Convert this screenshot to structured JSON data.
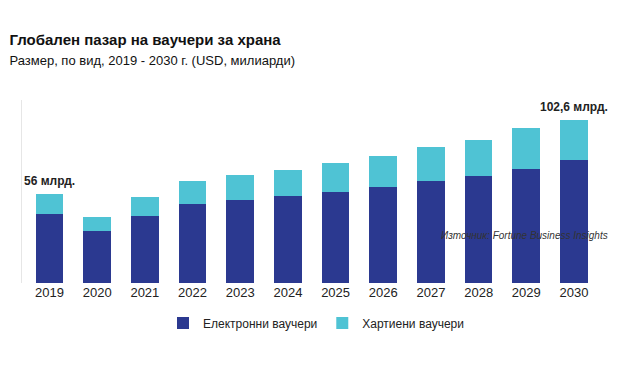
{
  "chart_data": {
    "type": "bar",
    "title": "Глобален пазар на ваучери за храна",
    "subtitle": "Размер, по вид, 2019 - 2030 г. (USD, милиарди)",
    "source": "Източник: Fortune Business Insights",
    "categories": [
      "2019",
      "2020",
      "2021",
      "2022",
      "2023",
      "2024",
      "2025",
      "2026",
      "2027",
      "2028",
      "2029",
      "2030"
    ],
    "series": [
      {
        "name": "Електронни ваучери",
        "color": "#2b3990",
        "values": [
          43.3,
          32.9,
          42.4,
          49.9,
          52.1,
          54.7,
          56.9,
          60.2,
          64.2,
          67.0,
          71.8,
          77.0
        ]
      },
      {
        "name": "Хартиени ваучери",
        "color": "#4fc3d4",
        "values": [
          12.7,
          8.5,
          11.6,
          14.1,
          15.9,
          16.6,
          18.4,
          19.8,
          21.1,
          23.0,
          25.5,
          25.6
        ]
      }
    ],
    "annotations": [
      {
        "category": "2019",
        "text": "56 млрд."
      },
      {
        "category": "2030",
        "text": "102,6 млрд."
      }
    ],
    "ylim": [
      0,
      115
    ],
    "stacked": true,
    "grid": false,
    "legend": "bottom",
    "tick_labels": "x"
  }
}
